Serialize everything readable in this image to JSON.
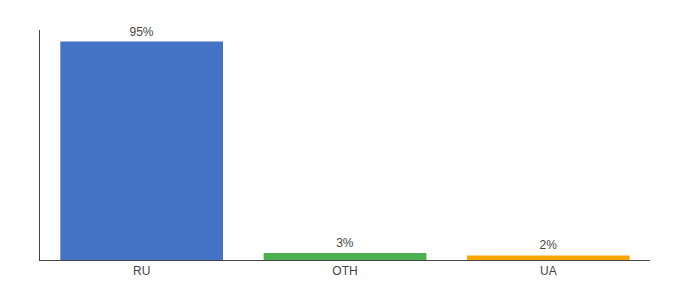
{
  "chart_data": {
    "type": "bar",
    "categories": [
      "RU",
      "OTH",
      "UA"
    ],
    "values": [
      95,
      3,
      2
    ],
    "value_labels": [
      "95%",
      "3%",
      "2%"
    ],
    "colors": [
      "#4472c4",
      "#4caf50",
      "#ffa500"
    ],
    "ylim": [
      0,
      100
    ],
    "data_labels": true,
    "tick_labels": "x",
    "grid": false
  }
}
